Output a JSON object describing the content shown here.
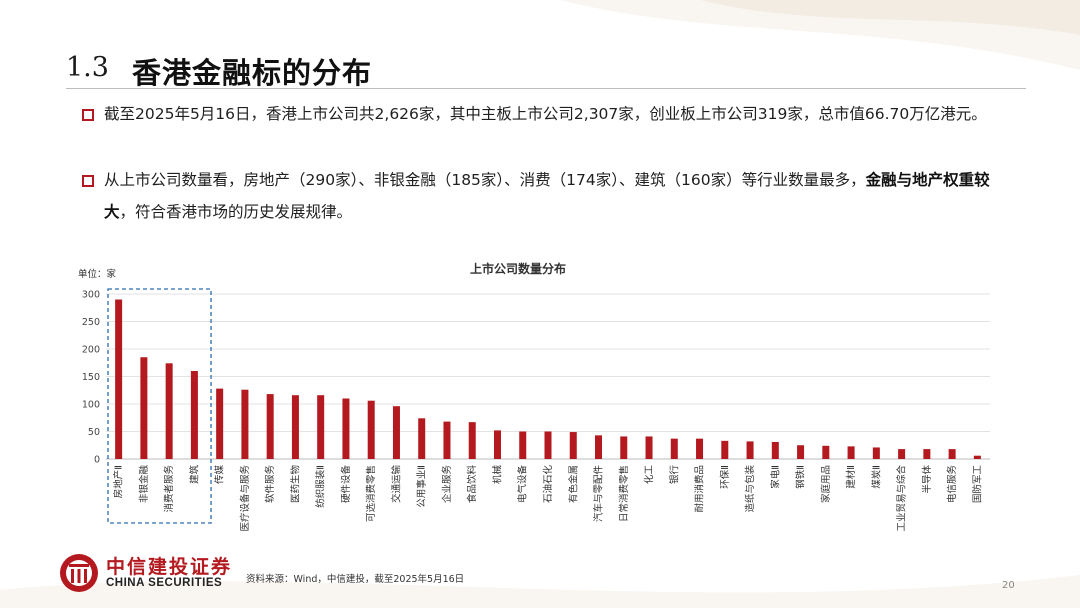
{
  "slide": {
    "section_number": "1.3",
    "title": "香港金融标的分布",
    "bullets": [
      {
        "text_parts": [
          "截至2025年5月16日，香港上市公司共2,626家，其中主板上市公司2,307家，创业板上市公司319家，总市值66.70万亿港元。"
        ]
      },
      {
        "text_before": "从上市公司数量看，房地产（290家）、非银金融（185家）、消费（174家）、建筑（160家）等行业数量最多，",
        "text_bold": "金融与地产权重较大",
        "text_after": "，符合香港市场的历史发展规律。"
      }
    ],
    "source": "资料来源：Wind，中信建投，截至2025年5月16日",
    "page_number": "20",
    "logo": {
      "cn": "中信建投证券",
      "en": "CHINA SECURITIES"
    }
  },
  "colors": {
    "accent": "#b3191e",
    "bar": "#b3191e",
    "highlight_box": "#2b6cb0",
    "grid": "#e3e3e3"
  },
  "chart_data": {
    "type": "bar",
    "title": "上市公司数量分布",
    "unit_label": "单位：家",
    "ylim": [
      0,
      300
    ],
    "yticks": [
      0,
      50,
      100,
      150,
      200,
      250,
      300
    ],
    "grid": true,
    "highlight_categories": [
      "房地产Ⅱ",
      "非银金融",
      "消费者服务",
      "建筑"
    ],
    "categories": [
      "房地产Ⅱ",
      "非银金融",
      "消费者服务",
      "建筑",
      "传媒",
      "医疗设备与服务",
      "软件服务",
      "医药生物",
      "纺织服装Ⅱ",
      "硬件设备",
      "可选消费零售",
      "交通运输",
      "公用事业Ⅱ",
      "企业服务",
      "食品饮料",
      "机械",
      "电气设备",
      "石油石化",
      "有色金属",
      "汽车与零配件",
      "日常消费零售",
      "化工",
      "银行",
      "耐用消费品",
      "环保Ⅱ",
      "造纸与包装",
      "家电Ⅱ",
      "钢铁Ⅱ",
      "家庭用品",
      "建材Ⅱ",
      "煤炭Ⅱ",
      "工业贸易与综合",
      "半导体",
      "电信服务",
      "国防军工"
    ],
    "values": [
      290,
      185,
      174,
      160,
      128,
      126,
      118,
      116,
      116,
      110,
      106,
      96,
      74,
      68,
      67,
      52,
      50,
      50,
      49,
      43,
      41,
      41,
      37,
      37,
      33,
      32,
      31,
      25,
      24,
      23,
      21,
      18,
      18,
      18,
      6
    ]
  }
}
